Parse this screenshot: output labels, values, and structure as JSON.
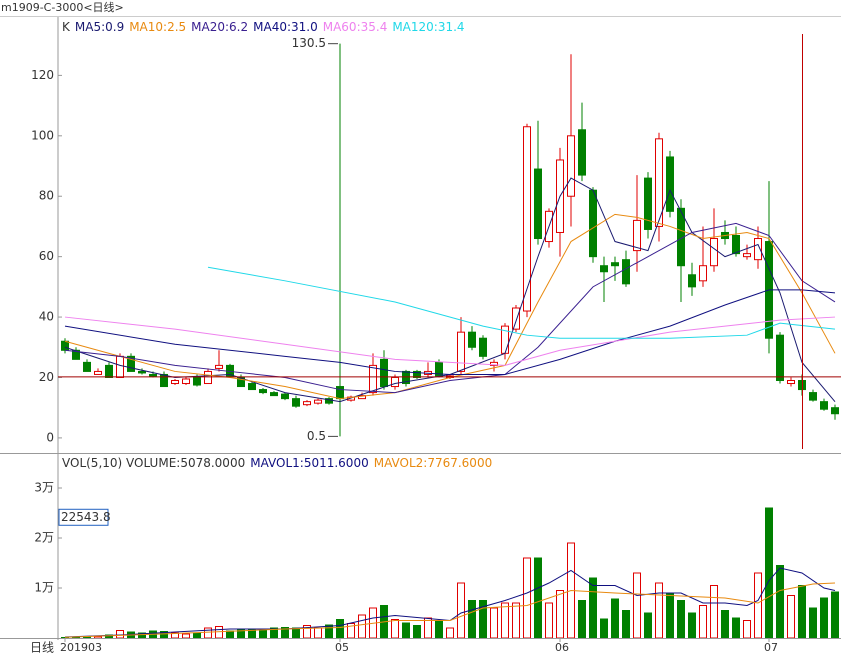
{
  "title": "m1909-C-3000<日线>",
  "chart_data": {
    "type": "candlestick",
    "header": "K",
    "ylim": [
      -5,
      139
    ],
    "yticks": [
      0,
      20,
      40,
      60,
      80,
      100,
      120
    ],
    "xticks": [
      {
        "value": 0,
        "label": "201903"
      },
      {
        "value": 25,
        "label": "05"
      },
      {
        "value": 45,
        "label": "06"
      },
      {
        "value": 64,
        "label": "07"
      }
    ],
    "period_label": "日线",
    "up_color": "#e00000",
    "down_color": "#008000",
    "extreme_index": 25,
    "ohlc": [
      [
        32,
        33,
        28,
        29
      ],
      [
        29,
        30,
        26,
        26
      ],
      [
        25,
        26,
        22,
        22
      ],
      [
        21,
        23,
        21,
        22
      ],
      [
        24,
        25,
        20,
        20
      ],
      [
        20,
        28,
        20,
        27
      ],
      [
        27,
        28,
        22,
        22
      ],
      [
        22,
        23,
        21,
        21.5
      ],
      [
        21,
        22,
        20,
        20.5
      ],
      [
        21,
        22,
        17,
        17
      ],
      [
        18,
        19.5,
        17.5,
        19
      ],
      [
        18,
        20,
        17.5,
        19.5
      ],
      [
        20,
        21,
        17,
        17.5
      ],
      [
        18,
        23,
        18,
        22
      ],
      [
        23,
        29,
        22,
        24
      ],
      [
        24,
        24.5,
        20,
        20.5
      ],
      [
        20,
        21,
        17,
        17
      ],
      [
        18,
        18.5,
        16,
        16
      ],
      [
        16,
        16.5,
        14.5,
        15
      ],
      [
        15,
        15.5,
        14,
        14
      ],
      [
        14.5,
        15,
        12.5,
        13
      ],
      [
        13,
        14,
        10,
        10.5
      ],
      [
        11,
        12.5,
        10.5,
        12
      ],
      [
        11.5,
        13,
        11,
        12.5
      ],
      [
        13,
        13.5,
        11,
        11.5
      ],
      [
        17,
        130.5,
        0.5,
        13
      ],
      [
        12.5,
        14,
        12,
        13.5
      ],
      [
        13,
        15,
        13,
        14
      ],
      [
        15,
        28,
        14,
        24
      ],
      [
        26,
        29,
        16,
        17
      ],
      [
        17,
        21,
        16,
        20
      ],
      [
        22,
        22.5,
        17,
        18
      ],
      [
        22,
        22.5,
        19.5,
        20
      ],
      [
        21,
        25,
        20,
        22
      ],
      [
        25,
        26,
        20,
        20.5
      ],
      [
        20,
        21,
        19.5,
        20.5
      ],
      [
        22,
        40,
        21,
        35
      ],
      [
        35,
        37,
        29,
        30
      ],
      [
        33,
        34,
        26,
        27
      ],
      [
        24,
        26,
        22,
        25
      ],
      [
        28,
        38,
        26,
        37
      ],
      [
        36,
        44,
        35,
        43
      ],
      [
        42,
        104,
        40,
        103
      ],
      [
        89,
        105,
        64,
        66
      ],
      [
        65,
        76,
        63,
        75
      ],
      [
        68,
        96,
        60,
        92
      ],
      [
        80,
        127,
        70,
        100
      ],
      [
        102,
        111,
        85,
        87
      ],
      [
        82,
        83,
        58,
        60
      ],
      [
        57,
        60,
        45,
        55
      ],
      [
        58,
        60,
        52,
        57
      ],
      [
        59,
        62,
        50,
        51
      ],
      [
        62,
        87,
        55,
        72
      ],
      [
        86,
        88,
        66,
        69
      ],
      [
        70,
        101,
        65,
        99
      ],
      [
        93,
        95,
        73,
        75
      ],
      [
        76,
        79,
        45,
        57
      ],
      [
        54,
        58,
        47,
        50
      ],
      [
        52,
        70,
        50,
        57
      ],
      [
        57,
        76,
        55,
        66
      ],
      [
        68,
        72,
        64,
        66
      ],
      [
        67,
        70,
        60,
        61
      ],
      [
        60,
        64,
        59,
        61
      ],
      [
        59,
        70,
        56,
        66
      ],
      [
        65,
        85,
        28,
        33
      ],
      [
        34,
        35,
        18,
        19
      ],
      [
        18,
        20,
        17,
        19
      ],
      [
        19,
        21,
        14,
        16
      ],
      [
        15,
        16,
        12,
        12.5
      ],
      [
        12,
        13,
        9,
        9.5
      ],
      [
        10,
        11,
        6,
        8
      ]
    ],
    "series": [
      {
        "name": "MA5:0.9",
        "color": "#1a1a70",
        "x": [
          0,
          5,
          10,
          15,
          20,
          25,
          30,
          35,
          40,
          43,
          45,
          46,
          48,
          50,
          53,
          55,
          57,
          60,
          63,
          65,
          67,
          70
        ],
        "values": [
          30,
          24,
          20,
          21,
          15,
          12,
          18,
          21,
          28,
          60,
          80,
          86,
          82,
          65,
          62,
          82,
          68,
          60,
          64,
          48,
          25,
          12
        ]
      },
      {
        "name": "MA10:2.5",
        "color": "#e88a10",
        "x": [
          0,
          5,
          10,
          15,
          20,
          25,
          30,
          35,
          40,
          43,
          46,
          50,
          52,
          55,
          58,
          62,
          64,
          67,
          70
        ],
        "values": [
          32,
          27,
          22,
          20,
          17,
          13,
          15,
          20,
          24,
          45,
          65,
          74,
          73,
          70,
          66,
          68,
          66,
          48,
          28
        ]
      },
      {
        "name": "MA20:6.2",
        "color": "#3a2090",
        "x": [
          0,
          5,
          10,
          15,
          20,
          25,
          30,
          35,
          40,
          43,
          48,
          53,
          57,
          61,
          64,
          67,
          70
        ],
        "values": [
          29,
          27,
          24,
          22,
          20,
          16,
          15,
          19,
          21,
          30,
          50,
          60,
          68,
          71,
          67,
          52,
          45
        ]
      },
      {
        "name": "MA40:31.0",
        "color": "#101080",
        "x": [
          0,
          10,
          20,
          25,
          30,
          35,
          40,
          45,
          50,
          55,
          60,
          64,
          67,
          70
        ],
        "values": [
          37,
          31,
          27,
          25,
          22,
          21,
          21,
          26,
          32,
          37,
          44,
          49,
          49,
          48
        ]
      },
      {
        "name": "MA60:35.4",
        "color": "#ee82ee",
        "x": [
          0,
          10,
          20,
          30,
          35,
          40,
          45,
          50,
          55,
          60,
          65,
          70
        ],
        "values": [
          40,
          36,
          31,
          26,
          25,
          24,
          29,
          32,
          35,
          37,
          39,
          40
        ]
      },
      {
        "name": "MA120:31.4",
        "color": "#20d8e8",
        "x": [
          13,
          20,
          30,
          38,
          42,
          45,
          55,
          62,
          65,
          70
        ],
        "values": [
          56.5,
          52,
          45,
          37,
          34,
          33,
          33,
          34,
          38,
          36
        ]
      }
    ],
    "crosshair": {
      "index": 67,
      "price": 20.2,
      "volume": 22543.8
    },
    "volume_panel": {
      "header": "VOL(5,10) VOLUME:5078.0000",
      "ylim": [
        0,
        36400
      ],
      "yticks": [
        {
          "value": 10000,
          "label": "1万"
        },
        {
          "value": 20000,
          "label": "2万"
        },
        {
          "value": 30000,
          "label": "3万"
        }
      ],
      "values": [
        100,
        200,
        300,
        300,
        600,
        1500,
        1200,
        1000,
        1400,
        1300,
        1000,
        800,
        1000,
        2000,
        2300,
        1400,
        1800,
        1800,
        1500,
        2000,
        2100,
        2000,
        2500,
        2000,
        2600,
        3700,
        2900,
        4600,
        6000,
        6500,
        3700,
        3000,
        2500,
        4000,
        3500,
        2000,
        11000,
        7500,
        7500,
        6000,
        7000,
        7000,
        16000,
        16000,
        7000,
        9500,
        19000,
        7500,
        12000,
        3800,
        7800,
        5500,
        13000,
        5000,
        11000,
        9000,
        7500,
        5000,
        6500,
        10500,
        5500,
        4000,
        3500,
        13000,
        26000,
        14500,
        8500,
        10500,
        6000,
        8000,
        9200
      ],
      "series": [
        {
          "name": "MAVOL1:5011.6000",
          "color": "#101080",
          "x": [
            0,
            5,
            10,
            15,
            20,
            25,
            28,
            30,
            35,
            36,
            40,
            42,
            44,
            46,
            48,
            50,
            52,
            54,
            56,
            58,
            60,
            62,
            63,
            64,
            65,
            67,
            69,
            70
          ],
          "values": [
            200,
            600,
            1200,
            1800,
            1800,
            2500,
            4000,
            4500,
            3500,
            5000,
            7500,
            9000,
            11000,
            13500,
            10500,
            10500,
            8500,
            9000,
            9000,
            7000,
            7000,
            6500,
            7500,
            11500,
            14000,
            13000,
            10000,
            9500
          ]
        },
        {
          "name": "MAVOL2:7767.6000",
          "color": "#e88a10",
          "x": [
            0,
            10,
            20,
            25,
            30,
            35,
            38,
            42,
            46,
            50,
            55,
            60,
            63,
            65,
            68,
            70
          ],
          "values": [
            150,
            900,
            1800,
            2100,
            3500,
            3500,
            6000,
            6500,
            9500,
            9000,
            8500,
            8000,
            7000,
            9500,
            10800,
            11000
          ]
        }
      ]
    }
  }
}
